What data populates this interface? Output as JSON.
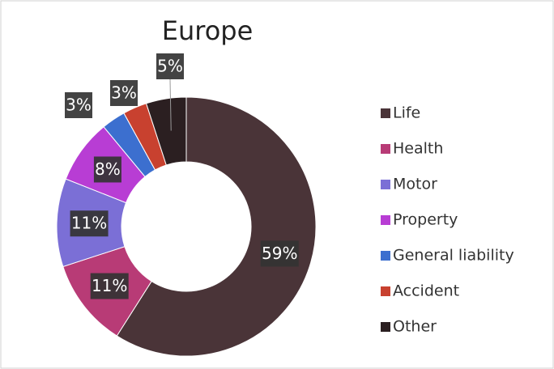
{
  "chart_data": {
    "type": "donut",
    "title": "Europe",
    "categories": [
      "Life",
      "Health",
      "Motor",
      "Property",
      "General liability",
      "Accident",
      "Other"
    ],
    "values": [
      59,
      11,
      11,
      8,
      3,
      3,
      5
    ],
    "value_labels": [
      "59%",
      "11%",
      "11%",
      "8%",
      "3%",
      "3%",
      "5%"
    ],
    "colors": [
      "#4a3438",
      "#b83b76",
      "#7b6fd6",
      "#b83dd4",
      "#3c6fcf",
      "#c8412f",
      "#2b1f21"
    ],
    "legend": "right"
  }
}
